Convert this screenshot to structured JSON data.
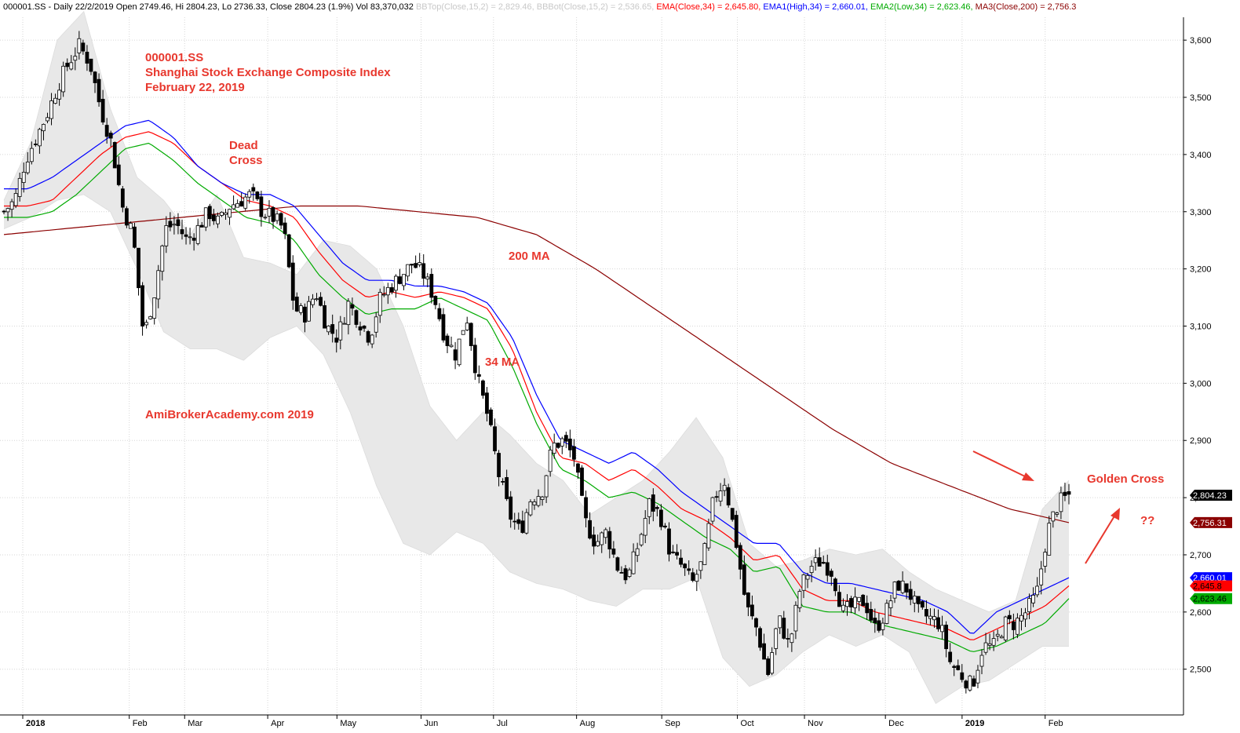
{
  "header": {
    "prefix": "000001.SS - Daily 22/2/2019 Open 2749.46, Hi 2804.23, Lo 2736.33, Close 2804.23 (1.9%) Vol 83,370,032 ",
    "bbtop": "BBTop(Close,15,2) = 2,829.46, ",
    "bbbot": "BBBot(Close,15,2) = 2,536.65, ",
    "ema": "EMA(Close,34) = 2,645.80, ",
    "ema1": "EMA1(High,34) = 2,660.01, ",
    "ema2": "EMA2(Low,34) = 2,623.46, ",
    "ma3": "MA3(Close,200) = 2,756.3"
  },
  "annotations": {
    "symbol": "000001.SS",
    "name": "Shanghai Stock Exchange Composite Index",
    "date": "February 22, 2019",
    "dead_cross": [
      "Dead",
      "Cross"
    ],
    "ma200": "200 MA",
    "ma34": "34 MA",
    "site": "AmiBrokerAcademy.com   2019",
    "golden_cross": "Golden Cross",
    "question": "??"
  },
  "colors": {
    "ema_close": "#ff0000",
    "ema_high": "#0000ff",
    "ema_low": "#00aa00",
    "ma200": "#8b0000",
    "bands": "#e8e8e8",
    "annotation": "#e8382e",
    "close_tag_bg": "#000000"
  },
  "chart_data": {
    "type": "candlestick",
    "ylim": [
      2420,
      3640
    ],
    "yticks": [
      2500,
      2600,
      2700,
      2800,
      2900,
      3000,
      3100,
      3200,
      3300,
      3400,
      3500,
      3600
    ],
    "ytick_labels": [
      "2,500",
      "2,600",
      "2,700",
      "2,800",
      "2,900",
      "3,000",
      "3,100",
      "3,200",
      "3,300",
      "3,400",
      "3,500",
      "3,600"
    ],
    "xtick_labels": [
      "2018",
      "Feb",
      "Mar",
      "Apr",
      "May",
      "Jun",
      "Jul",
      "Aug",
      "Sep",
      "Oct",
      "Nov",
      "Dec",
      "2019",
      "Feb"
    ],
    "xtick_bold": [
      true,
      false,
      false,
      false,
      false,
      false,
      false,
      false,
      false,
      false,
      false,
      false,
      true,
      false
    ],
    "last_values": {
      "close": "2,804.23",
      "ma200": "2,756.31",
      "ema_high": "2,660.01",
      "ema_close": "2,645.8",
      "ema_low": "2,623.46"
    },
    "price_anchors": [
      3300,
      3320,
      3390,
      3430,
      3470,
      3520,
      3560,
      3590,
      3560,
      3480,
      3420,
      3310,
      3260,
      3080,
      3160,
      3270,
      3280,
      3250,
      3270,
      3300,
      3280,
      3310,
      3320,
      3330,
      3300,
      3290,
      3270,
      3130,
      3120,
      3160,
      3100,
      3080,
      3140,
      3110,
      3080,
      3150,
      3170,
      3190,
      3210,
      3190,
      3150,
      3080,
      3050,
      3120,
      3010,
      2940,
      2840,
      2770,
      2740,
      2800,
      2810,
      2890,
      2900,
      2870,
      2760,
      2720,
      2740,
      2680,
      2660,
      2720,
      2790,
      2770,
      2700,
      2680,
      2650,
      2690,
      2800,
      2830,
      2730,
      2610,
      2570,
      2490,
      2590,
      2540,
      2640,
      2680,
      2690,
      2670,
      2600,
      2610,
      2620,
      2570,
      2600,
      2650,
      2640,
      2600,
      2590,
      2580,
      2510,
      2490,
      2470,
      2540,
      2540,
      2580,
      2580,
      2600,
      2630,
      2740,
      2790,
      2804.23
    ],
    "ema_high_anchors": [
      3340,
      3340,
      3360,
      3390,
      3420,
      3450,
      3460,
      3430,
      3380,
      3350,
      3330,
      3330,
      3310,
      3260,
      3210,
      3180,
      3180,
      3170,
      3170,
      3160,
      3140,
      3080,
      2980,
      2900,
      2880,
      2860,
      2880,
      2850,
      2810,
      2780,
      2750,
      2720,
      2720,
      2670,
      2650,
      2650,
      2640,
      2630,
      2620,
      2600,
      2560,
      2600,
      2620,
      2640,
      2660.01
    ],
    "ema_close_anchors": [
      3310,
      3310,
      3320,
      3360,
      3400,
      3430,
      3440,
      3420,
      3380,
      3350,
      3320,
      3310,
      3290,
      3230,
      3180,
      3150,
      3160,
      3150,
      3160,
      3150,
      3130,
      3060,
      2950,
      2870,
      2860,
      2830,
      2850,
      2820,
      2780,
      2760,
      2730,
      2690,
      2700,
      2640,
      2620,
      2620,
      2600,
      2590,
      2580,
      2570,
      2550,
      2570,
      2590,
      2610,
      2645.8
    ],
    "ema_low_anchors": [
      3290,
      3290,
      3300,
      3330,
      3370,
      3410,
      3420,
      3390,
      3350,
      3320,
      3290,
      3280,
      3250,
      3190,
      3150,
      3120,
      3130,
      3130,
      3150,
      3130,
      3110,
      3030,
      2930,
      2850,
      2830,
      2800,
      2810,
      2790,
      2760,
      2730,
      2710,
      2670,
      2680,
      2610,
      2600,
      2600,
      2580,
      2570,
      2560,
      2550,
      2530,
      2540,
      2560,
      2580,
      2623.46
    ],
    "ma200_anchors": [
      3260,
      3270,
      3280,
      3290,
      3300,
      3310,
      3310,
      3300,
      3290,
      3260,
      3200,
      3130,
      3060,
      2990,
      2920,
      2860,
      2820,
      2780,
      2756.31
    ],
    "bb_top_anchors": [
      3320,
      3420,
      3600,
      3650,
      3480,
      3360,
      3320,
      3260,
      3330,
      3220,
      3210,
      3190,
      3250,
      3240,
      3200,
      3100,
      2960,
      2900,
      2950,
      2910,
      2860,
      2830,
      2770,
      2800,
      2830,
      2880,
      2940,
      2870,
      2720,
      2680,
      2690,
      2710,
      2700,
      2710,
      2670,
      2640,
      2620,
      2600,
      2620,
      2780,
      2830
    ],
    "bb_bot_anchors": [
      3270,
      3290,
      3320,
      3330,
      3300,
      3200,
      3090,
      3060,
      3060,
      3040,
      3080,
      3100,
      3050,
      2950,
      2820,
      2720,
      2700,
      2740,
      2720,
      2670,
      2650,
      2640,
      2620,
      2610,
      2640,
      2640,
      2660,
      2520,
      2470,
      2490,
      2530,
      2560,
      2540,
      2560,
      2530,
      2440,
      2470,
      2480,
      2510,
      2540,
      2540
    ]
  }
}
